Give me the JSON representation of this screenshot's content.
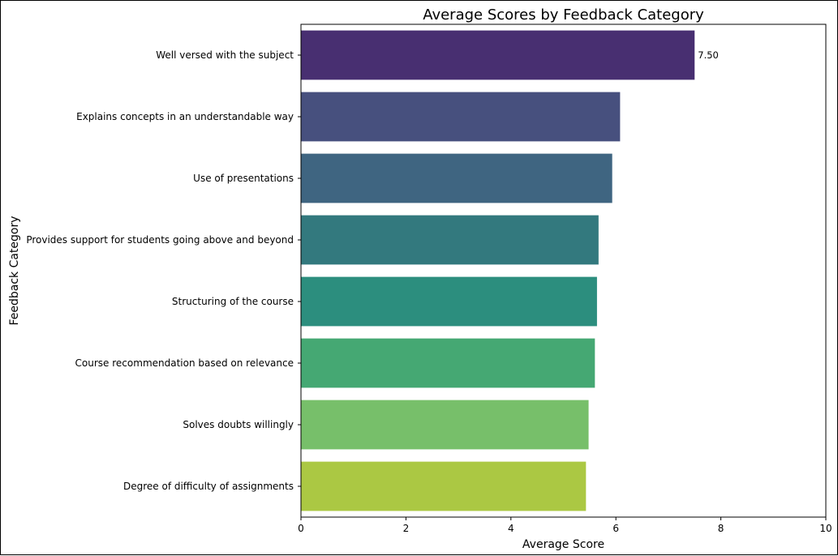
{
  "chart_data": {
    "type": "bar",
    "orientation": "horizontal",
    "title": "Average Scores by Feedback Category",
    "xlabel": "Average Score",
    "ylabel": "Feedback Category",
    "xlim": [
      0,
      10
    ],
    "xticks": [
      0,
      2,
      4,
      6,
      8,
      10
    ],
    "grid": false,
    "legend": "none",
    "categories": [
      "Well versed with the subject",
      "Explains concepts in an understandable way",
      "Use of presentations",
      "Provides support for students going above and beyond",
      "Structuring of the course",
      "Course recommendation based on relevance",
      "Solves doubts willingly",
      "Degree of difficulty of assignments"
    ],
    "values": [
      7.5,
      6.08,
      5.93,
      5.67,
      5.64,
      5.6,
      5.48,
      5.43
    ],
    "colors": [
      "#482f71",
      "#47507e",
      "#3f6581",
      "#33797e",
      "#2c8e7e",
      "#45a873",
      "#77bf6a",
      "#abc843"
    ],
    "data_labels": [
      {
        "category": "Well versed with the subject",
        "text": "7.50"
      }
    ]
  }
}
